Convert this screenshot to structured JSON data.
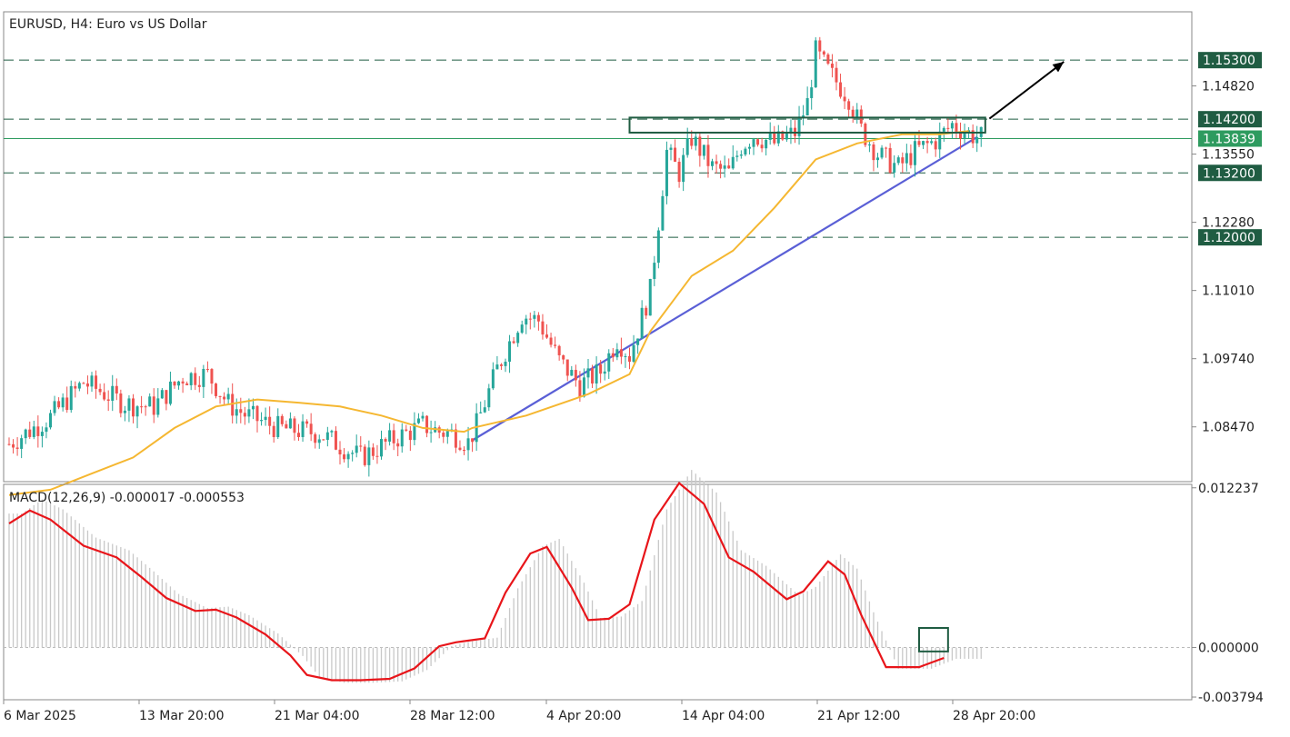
{
  "chart_title": "EURUSD, H4:  Euro vs US Dollar",
  "macd_label": "MACD(12,26,9) -0.000017 -0.000553",
  "colors": {
    "bull": "#26a69a",
    "bear": "#ef5350",
    "ma": "#f5b731",
    "trend": "#5a5fd6",
    "macd": "#e8151a",
    "hist": "#c8c8c8",
    "tag_dark": "#1f5c42",
    "tag_green": "#2e9b5f",
    "arrow": "#000000"
  },
  "chart_data": [
    {
      "type": "candlestick",
      "title": "EURUSD, H4:  Euro vs US Dollar",
      "ylim": [
        1.0745,
        1.162
      ],
      "y_ticks": [
        "1.14820",
        "1.13550",
        "1.12280",
        "1.11010",
        "1.09740",
        "1.08470"
      ],
      "x_ticks": [
        "6 Mar 2025",
        "13 Mar 20:00",
        "21 Mar 04:00",
        "28 Mar 12:00",
        "4 Apr 20:00",
        "14 Apr 04:00",
        "21 Apr 12:00",
        "28 Apr 20:00"
      ],
      "levels": [
        {
          "value": 1.153,
          "label": "1.15300",
          "style": "dashed"
        },
        {
          "value": 1.142,
          "label": "1.14200",
          "style": "dashed"
        },
        {
          "value": 1.13839,
          "label": "1.13839",
          "style": "solid"
        },
        {
          "value": 1.132,
          "label": "1.13200",
          "style": "dashed"
        },
        {
          "value": 1.12,
          "label": "1.12000",
          "style": "dashed"
        }
      ],
      "ma_path": [
        [
          0,
          1.072
        ],
        [
          10,
          1.073
        ],
        [
          20,
          1.076
        ],
        [
          30,
          1.079
        ],
        [
          40,
          1.0845
        ],
        [
          50,
          1.0885
        ],
        [
          60,
          1.0898
        ],
        [
          70,
          1.0892
        ],
        [
          80,
          1.0885
        ],
        [
          90,
          1.0868
        ],
        [
          100,
          1.0845
        ],
        [
          110,
          1.0838
        ],
        [
          112,
          1.0845
        ],
        [
          125,
          1.0868
        ],
        [
          140,
          1.0908
        ],
        [
          150,
          1.0945
        ],
        [
          155,
          1.1025
        ],
        [
          165,
          1.1128
        ],
        [
          175,
          1.1175
        ],
        [
          185,
          1.1255
        ],
        [
          195,
          1.1345
        ],
        [
          205,
          1.1375
        ],
        [
          216,
          1.1392
        ],
        [
          225,
          1.1392
        ],
        [
          232,
          1.1398
        ]
      ],
      "trendline": [
        [
          112,
          1.0822
        ],
        [
          234,
          1.13865
        ]
      ],
      "zone": {
        "x0": 150,
        "x1": 236,
        "y0": 1.1395,
        "y1": 1.1423
      },
      "arrow": [
        [
          237,
          1.1421
        ],
        [
          255,
          1.1527
        ]
      ]
    },
    {
      "type": "line+histogram",
      "title": "MACD(12,26,9) -0.000017 -0.000553",
      "ylim": [
        -0.004,
        0.0125
      ],
      "y_ticks": [
        "0.012237",
        "0.000000",
        "-0.003794"
      ],
      "signal_path": [
        [
          0,
          0.0095
        ],
        [
          5,
          0.0105
        ],
        [
          10,
          0.0098
        ],
        [
          18,
          0.0078
        ],
        [
          26,
          0.0069
        ],
        [
          32,
          0.0054
        ],
        [
          38,
          0.0038
        ],
        [
          45,
          0.0028
        ],
        [
          50,
          0.0029
        ],
        [
          55,
          0.0023
        ],
        [
          62,
          0.001
        ],
        [
          68,
          -0.0006
        ],
        [
          72,
          -0.0021
        ],
        [
          78,
          -0.0025
        ],
        [
          85,
          -0.0025
        ],
        [
          92,
          -0.0024
        ],
        [
          98,
          -0.0016
        ],
        [
          104,
          0.0001
        ],
        [
          108,
          0.0004
        ],
        [
          115,
          0.0007
        ],
        [
          120,
          0.0042
        ],
        [
          126,
          0.0072
        ],
        [
          130,
          0.0077
        ],
        [
          136,
          0.0046
        ],
        [
          140,
          0.0021
        ],
        [
          145,
          0.0022
        ],
        [
          150,
          0.0033
        ],
        [
          156,
          0.0098
        ],
        [
          162,
          0.0126
        ],
        [
          168,
          0.011
        ],
        [
          174,
          0.0069
        ],
        [
          180,
          0.0058
        ],
        [
          188,
          0.0037
        ],
        [
          192,
          0.0043
        ],
        [
          198,
          0.0066
        ],
        [
          202,
          0.0056
        ],
        [
          206,
          0.0025
        ],
        [
          212,
          -0.0015
        ],
        [
          220,
          -0.0015
        ],
        [
          226,
          -0.0008
        ]
      ],
      "highlight_box": {
        "x0": 220,
        "x1": 227,
        "y0": -0.0003,
        "y1": 0.0015
      }
    }
  ]
}
